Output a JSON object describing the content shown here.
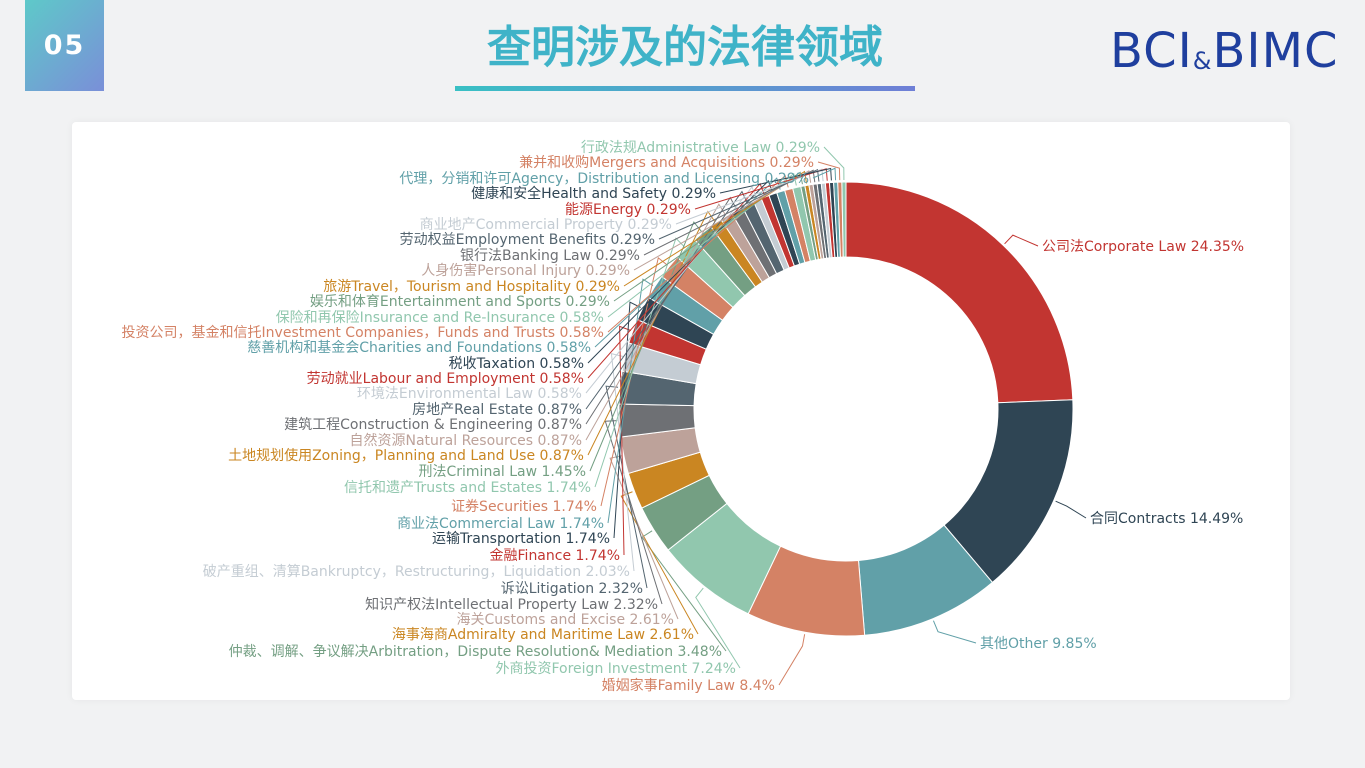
{
  "badge": "05",
  "title": "查明涉及的法律领域",
  "logo": {
    "left": "BCI",
    "amp": "&",
    "right": "BIMC"
  },
  "chart_data": {
    "type": "pie",
    "donut": true,
    "slices": [
      {
        "label": "公司法Corporate Law",
        "value": 24.35,
        "color": "#c23531"
      },
      {
        "label": "合同Contracts",
        "value": 14.49,
        "color": "#2f4554"
      },
      {
        "label": "其他Other",
        "value": 9.85,
        "color": "#61a0a8"
      },
      {
        "label": "婚姻家事Family Law",
        "value": 8.4,
        "color": "#d48265"
      },
      {
        "label": "外商投资Foreign Investment",
        "value": 7.24,
        "color": "#91c7ae"
      },
      {
        "label": "仲裁、调解、争议解决Arbitration，Dispute Resolution& Mediation",
        "value": 3.48,
        "color": "#749f83"
      },
      {
        "label": "海事海商Admiralty and Maritime Law",
        "value": 2.61,
        "color": "#ca8622"
      },
      {
        "label": "海关Customs and Excise",
        "value": 2.61,
        "color": "#bda29a"
      },
      {
        "label": "知识产权法Intellectual Property Law",
        "value": 2.32,
        "color": "#6e7074"
      },
      {
        "label": "诉讼Litigation",
        "value": 2.32,
        "color": "#546570"
      },
      {
        "label": "破产重组、清算Bankruptcy，Restructuring，Liquidation",
        "value": 2.03,
        "color": "#c4ccd3"
      },
      {
        "label": "金融Finance",
        "value": 1.74,
        "color": "#c23531"
      },
      {
        "label": "运输Transportation",
        "value": 1.74,
        "color": "#2f4554"
      },
      {
        "label": "商业法Commercial Law",
        "value": 1.74,
        "color": "#61a0a8"
      },
      {
        "label": "证券Securities",
        "value": 1.74,
        "color": "#d48265"
      },
      {
        "label": "信托和遗产Trusts and Estates",
        "value": 1.74,
        "color": "#91c7ae"
      },
      {
        "label": "刑法Criminal Law",
        "value": 1.45,
        "color": "#749f83"
      },
      {
        "label": "土地规划使用Zoning，Planning and Land Use",
        "value": 0.87,
        "color": "#ca8622"
      },
      {
        "label": "自然资源Natural Resources",
        "value": 0.87,
        "color": "#bda29a"
      },
      {
        "label": "建筑工程Construction & Engineering",
        "value": 0.87,
        "color": "#6e7074"
      },
      {
        "label": "房地产Real Estate",
        "value": 0.87,
        "color": "#546570"
      },
      {
        "label": "环境法Environmental Law",
        "value": 0.58,
        "color": "#c4ccd3"
      },
      {
        "label": "劳动就业Labour and Employment",
        "value": 0.58,
        "color": "#c23531"
      },
      {
        "label": "税收Taxation",
        "value": 0.58,
        "color": "#2f4554"
      },
      {
        "label": "慈善机构和基金会Charities and Foundations",
        "value": 0.58,
        "color": "#61a0a8"
      },
      {
        "label": "投资公司，基金和信托Investment Companies，Funds and Trusts",
        "value": 0.58,
        "color": "#d48265"
      },
      {
        "label": "保险和再保险Insurance and Re-Insurance",
        "value": 0.58,
        "color": "#91c7ae"
      },
      {
        "label": "娱乐和体育Entertainment and Sports",
        "value": 0.29,
        "color": "#749f83"
      },
      {
        "label": "旅游Travel，Tourism and Hospitality",
        "value": 0.29,
        "color": "#ca8622"
      },
      {
        "label": "人身伤害Personal Injury",
        "value": 0.29,
        "color": "#bda29a"
      },
      {
        "label": "银行法Banking Law",
        "value": 0.29,
        "color": "#6e7074"
      },
      {
        "label": "劳动权益Employment Benefits",
        "value": 0.29,
        "color": "#546570"
      },
      {
        "label": "商业地产Commercial Property",
        "value": 0.29,
        "color": "#c4ccd3"
      },
      {
        "label": "能源Energy",
        "value": 0.29,
        "color": "#c23531"
      },
      {
        "label": "健康和安全Health and Safety",
        "value": 0.29,
        "color": "#2f4554"
      },
      {
        "label": "代理，分销和许可Agency，Distribution and Licensing",
        "value": 0.29,
        "color": "#61a0a8"
      },
      {
        "label": "兼并和收购Mergers and Acquisitions",
        "value": 0.29,
        "color": "#d48265"
      },
      {
        "label": "行政法规Administrative Law",
        "value": 0.29,
        "color": "#91c7ae"
      }
    ],
    "label_format": "{label} {value}%"
  }
}
